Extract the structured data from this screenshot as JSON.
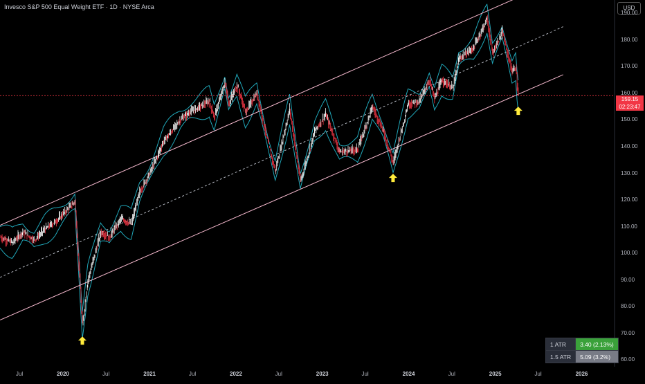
{
  "header": {
    "title": "Invesco S&P 500 Equal Weight ETF · 1D · NYSE Arca",
    "currency_button": "USD"
  },
  "price_tag": {
    "price": "159.15",
    "countdown": "02:23:47"
  },
  "atr_table": [
    {
      "label": "1 ATR",
      "value": "3.40 (2.13%)"
    },
    {
      "label": "1.5 ATR",
      "value": "5.09 (3.2%)"
    }
  ],
  "colors": {
    "background": "#000000",
    "candle_up": "#ffffff",
    "candle_down": "#f23645",
    "envelope": "#26c6da",
    "channel": "#f8bbd0",
    "midline": "#b2b5be",
    "marker": "#ffeb3b",
    "price_line": "#f23645"
  },
  "chart_data": {
    "type": "line",
    "title": "Invesco S&P 500 Equal Weight ETF",
    "xlabel": "",
    "ylabel": "",
    "ylim": [
      57.5,
      195
    ],
    "xlim": [
      "2019-04-10",
      "2026-05-20"
    ],
    "y_ticks": [
      60,
      70,
      80,
      90,
      100,
      110,
      120,
      130,
      140,
      150,
      160,
      170,
      180,
      190
    ],
    "y_tick_labels": [
      "60.00",
      "70.00",
      "80.00",
      "90.00",
      "100.00",
      "110.00",
      "120.00",
      "130.00",
      "140.00",
      "150.00",
      "160.00",
      "170.00",
      "180.00",
      "190.00"
    ],
    "x_ticks": [
      {
        "label": "Jul",
        "date": "2019-07-01",
        "year": false
      },
      {
        "label": "2020",
        "date": "2020-01-01",
        "year": true
      },
      {
        "label": "Jul",
        "date": "2020-07-01",
        "year": false
      },
      {
        "label": "2021",
        "date": "2021-01-01",
        "year": true
      },
      {
        "label": "Jul",
        "date": "2021-07-01",
        "year": false
      },
      {
        "label": "2022",
        "date": "2022-01-01",
        "year": true
      },
      {
        "label": "Jul",
        "date": "2022-07-01",
        "year": false
      },
      {
        "label": "2023",
        "date": "2023-01-01",
        "year": true
      },
      {
        "label": "Jul",
        "date": "2023-07-01",
        "year": false
      },
      {
        "label": "2024",
        "date": "2024-01-01",
        "year": true
      },
      {
        "label": "Jul",
        "date": "2024-07-01",
        "year": false
      },
      {
        "label": "2025",
        "date": "2025-01-01",
        "year": true
      },
      {
        "label": "Jul",
        "date": "2025-07-01",
        "year": false
      },
      {
        "label": "2026",
        "date": "2026-01-01",
        "year": true
      }
    ],
    "series": [
      {
        "type": "price",
        "points": [
          [
            "2019-04-10",
            106
          ],
          [
            "2019-06-01",
            104
          ],
          [
            "2019-07-15",
            108
          ],
          [
            "2019-09-01",
            105
          ],
          [
            "2019-10-15",
            109
          ],
          [
            "2019-12-01",
            112
          ],
          [
            "2020-01-15",
            116
          ],
          [
            "2020-02-20",
            119.5
          ],
          [
            "2020-03-05",
            100
          ],
          [
            "2020-03-23",
            73
          ],
          [
            "2020-04-15",
            90
          ],
          [
            "2020-06-08",
            108
          ],
          [
            "2020-07-15",
            106
          ],
          [
            "2020-09-01",
            113
          ],
          [
            "2020-10-15",
            111
          ],
          [
            "2020-11-20",
            123
          ],
          [
            "2021-01-01",
            130
          ],
          [
            "2021-03-01",
            142
          ],
          [
            "2021-05-10",
            150
          ],
          [
            "2021-06-20",
            153
          ],
          [
            "2021-08-01",
            155
          ],
          [
            "2021-09-10",
            157
          ],
          [
            "2021-10-01",
            151
          ],
          [
            "2021-11-15",
            164
          ],
          [
            "2021-12-01",
            156
          ],
          [
            "2022-01-05",
            163
          ],
          [
            "2022-02-10",
            153
          ],
          [
            "2022-03-30",
            160
          ],
          [
            "2022-05-20",
            140
          ],
          [
            "2022-06-16",
            131
          ],
          [
            "2022-08-16",
            154
          ],
          [
            "2022-09-30",
            127
          ],
          [
            "2022-11-30",
            146
          ],
          [
            "2023-01-15",
            152
          ],
          [
            "2023-03-15",
            138
          ],
          [
            "2023-05-30",
            139
          ],
          [
            "2023-07-31",
            155
          ],
          [
            "2023-09-15",
            146
          ],
          [
            "2023-10-27",
            134
          ],
          [
            "2023-12-29",
            156
          ],
          [
            "2024-02-15",
            157
          ],
          [
            "2024-03-28",
            165
          ],
          [
            "2024-04-19",
            158
          ],
          [
            "2024-05-20",
            165
          ],
          [
            "2024-07-05",
            162
          ],
          [
            "2024-07-31",
            173
          ],
          [
            "2024-09-30",
            177
          ],
          [
            "2024-11-27",
            188
          ],
          [
            "2024-12-20",
            175
          ],
          [
            "2025-01-30",
            183
          ],
          [
            "2025-03-13",
            168
          ],
          [
            "2025-03-28",
            170
          ],
          [
            "2025-04-03",
            163
          ],
          [
            "2025-04-08",
            159.15
          ]
        ]
      },
      {
        "type": "channel_upper",
        "points": [
          [
            "2019-04-10",
            110.5
          ],
          [
            "2025-04-08",
            196
          ]
        ]
      },
      {
        "type": "channel_mid",
        "points": [
          [
            "2019-04-10",
            91
          ],
          [
            "2025-10-15",
            185
          ]
        ]
      },
      {
        "type": "channel_lower",
        "points": [
          [
            "2019-04-10",
            75
          ],
          [
            "2025-10-15",
            167
          ]
        ]
      },
      {
        "type": "price_line",
        "value": 159.15
      }
    ],
    "annotations": [
      {
        "type": "arrow-up",
        "date": "2020-03-23",
        "value": 73
      },
      {
        "type": "arrow-up",
        "date": "2023-10-27",
        "value": 134
      },
      {
        "type": "arrow-up",
        "date": "2025-04-08",
        "value": 159.15
      }
    ]
  }
}
